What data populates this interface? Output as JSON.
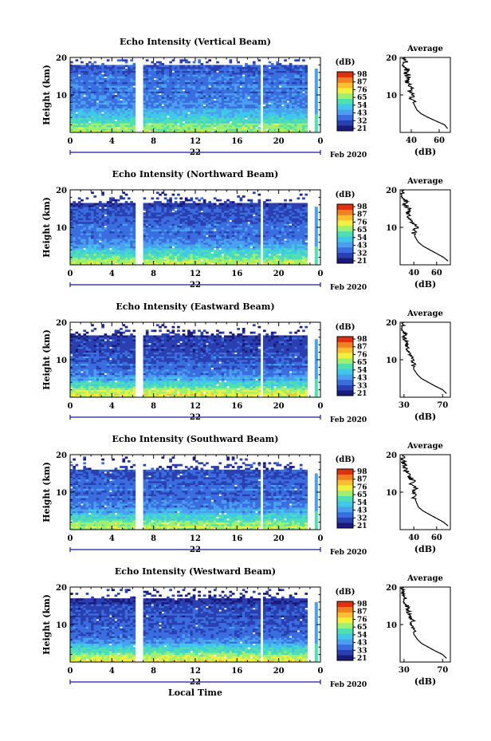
{
  "colors": {
    "scale": [
      "#1a1a7a",
      "#2a3fb0",
      "#3a6ee0",
      "#4aa0ee",
      "#40c8e8",
      "#50e0b0",
      "#a0f070",
      "#f0f040",
      "#f8c030",
      "#f08020",
      "#e03010"
    ],
    "gap": "#ffffff",
    "frame": "#000000",
    "date_axis": "#1a1a9a"
  },
  "shared": {
    "ylabel": "Height (km)",
    "xticks": [
      "0",
      "4",
      "8",
      "12",
      "16",
      "20",
      "0"
    ],
    "yticks": [
      "10",
      "20"
    ],
    "date_day": "22",
    "date_month": "Feb 2020",
    "xlabel": "Local Time",
    "unit_label": "(dB)",
    "avg_title": "Average",
    "avg_xlabel": "(dB)"
  },
  "chart_data": [
    {
      "type": "heatmap",
      "title": "Echo Intensity (Vertical Beam)",
      "colorbar_ticks": [
        "98",
        "87",
        "76",
        "65",
        "54",
        "43",
        "32",
        "21"
      ],
      "avg_ticks": [
        "40",
        "60"
      ],
      "avg_xlim": [
        32,
        68
      ],
      "avg_profile": [
        [
          66,
          1.0
        ],
        [
          64,
          2.0
        ],
        [
          58,
          3.0
        ],
        [
          52,
          4.0
        ],
        [
          47,
          5.0
        ],
        [
          44,
          6.0
        ],
        [
          42,
          7.5
        ],
        [
          40,
          9.0
        ],
        [
          40,
          10.0
        ],
        [
          39,
          11.0
        ],
        [
          42,
          12.0
        ],
        [
          38,
          13.0
        ],
        [
          37,
          14.0
        ],
        [
          38,
          15.0
        ],
        [
          36,
          16.0
        ],
        [
          37,
          17.0
        ],
        [
          35,
          18.0
        ],
        [
          36,
          19.0
        ],
        [
          34,
          20.0
        ]
      ],
      "base_dB": 40,
      "top_km": 18
    },
    {
      "type": "heatmap",
      "title": "Echo Intensity (Northward Beam)",
      "colorbar_ticks": [
        "98",
        "87",
        "76",
        "65",
        "54",
        "43",
        "32",
        "21"
      ],
      "avg_ticks": [
        "40",
        "60"
      ],
      "avg_xlim": [
        28,
        72
      ],
      "avg_profile": [
        [
          70,
          1.0
        ],
        [
          66,
          2.0
        ],
        [
          60,
          3.0
        ],
        [
          54,
          4.0
        ],
        [
          48,
          5.0
        ],
        [
          44,
          6.0
        ],
        [
          41,
          7.5
        ],
        [
          40,
          9.0
        ],
        [
          42,
          10.0
        ],
        [
          39,
          11.0
        ],
        [
          38,
          12.0
        ],
        [
          36,
          13.0
        ],
        [
          35,
          14.0
        ],
        [
          36,
          15.0
        ],
        [
          32,
          16.0
        ],
        [
          33,
          17.0
        ],
        [
          31,
          18.0
        ],
        [
          30,
          19.0
        ],
        [
          30,
          20.0
        ]
      ],
      "base_dB": 38,
      "top_km": 16.5
    },
    {
      "type": "heatmap",
      "title": "Echo Intensity (Eastward Beam)",
      "colorbar_ticks": [
        "98",
        "87",
        "76",
        "65",
        "54",
        "43",
        "33",
        "21"
      ],
      "avg_ticks": [
        "30",
        "70"
      ],
      "avg_xlim": [
        26,
        78
      ],
      "avg_profile": [
        [
          74,
          1.0
        ],
        [
          70,
          2.0
        ],
        [
          62,
          3.0
        ],
        [
          55,
          4.0
        ],
        [
          48,
          5.0
        ],
        [
          44,
          6.0
        ],
        [
          40,
          7.5
        ],
        [
          40,
          9.0
        ],
        [
          38,
          10.0
        ],
        [
          37,
          11.0
        ],
        [
          36,
          12.0
        ],
        [
          34,
          13.0
        ],
        [
          33,
          14.0
        ],
        [
          32,
          15.0
        ],
        [
          30,
          16.0
        ],
        [
          31,
          17.0
        ],
        [
          29,
          18.0
        ],
        [
          29,
          19.0
        ],
        [
          28,
          20.0
        ]
      ],
      "base_dB": 37,
      "top_km": 16.5
    },
    {
      "type": "heatmap",
      "title": "Echo Intensity (Southward Beam)",
      "colorbar_ticks": [
        "98",
        "87",
        "76",
        "65",
        "54",
        "43",
        "32",
        "21"
      ],
      "avg_ticks": [
        "40",
        "60"
      ],
      "avg_xlim": [
        28,
        72
      ],
      "avg_profile": [
        [
          70,
          1.0
        ],
        [
          66,
          2.0
        ],
        [
          60,
          3.0
        ],
        [
          54,
          4.0
        ],
        [
          48,
          5.0
        ],
        [
          44,
          6.0
        ],
        [
          42,
          7.5
        ],
        [
          40,
          9.0
        ],
        [
          40,
          10.0
        ],
        [
          42,
          11.0
        ],
        [
          38,
          12.0
        ],
        [
          40,
          13.0
        ],
        [
          36,
          14.0
        ],
        [
          34,
          15.0
        ],
        [
          33,
          16.0
        ],
        [
          32,
          17.0
        ],
        [
          31,
          18.0
        ],
        [
          30,
          19.0
        ],
        [
          30,
          20.0
        ]
      ],
      "base_dB": 37,
      "top_km": 16
    },
    {
      "type": "heatmap",
      "title": "Echo Intensity (Westward Beam)",
      "colorbar_ticks": [
        "98",
        "87",
        "76",
        "65",
        "54",
        "43",
        "33",
        "21"
      ],
      "avg_ticks": [
        "30",
        "70"
      ],
      "avg_xlim": [
        26,
        78
      ],
      "avg_profile": [
        [
          74,
          1.0
        ],
        [
          70,
          2.0
        ],
        [
          62,
          3.0
        ],
        [
          55,
          4.0
        ],
        [
          48,
          5.0
        ],
        [
          44,
          6.0
        ],
        [
          40,
          7.5
        ],
        [
          40,
          9.0
        ],
        [
          38,
          10.0
        ],
        [
          40,
          11.0
        ],
        [
          36,
          12.0
        ],
        [
          35,
          13.0
        ],
        [
          34,
          14.0
        ],
        [
          33,
          15.0
        ],
        [
          31,
          16.0
        ],
        [
          31,
          17.0
        ],
        [
          29,
          18.0
        ],
        [
          30,
          19.0
        ],
        [
          28,
          20.0
        ]
      ],
      "base_dB": 38,
      "top_km": 17
    }
  ]
}
